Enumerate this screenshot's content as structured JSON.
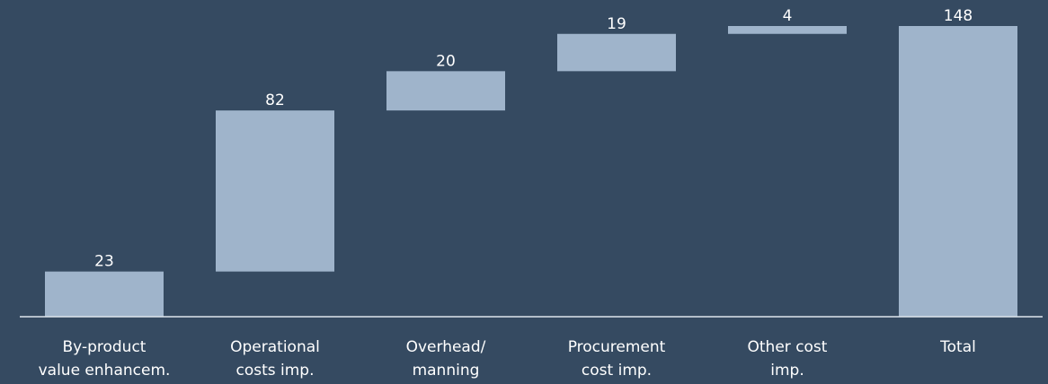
{
  "chart_data": {
    "type": "waterfall",
    "categories": [
      [
        "By-product",
        "value enhancem."
      ],
      [
        "Operational",
        "costs imp."
      ],
      [
        "Overhead/",
        "manning"
      ],
      [
        "Procurement",
        "cost imp."
      ],
      [
        "Other cost",
        "imp."
      ],
      [
        "Total"
      ]
    ],
    "values": [
      23,
      82,
      20,
      19,
      4,
      148
    ],
    "is_total": [
      false,
      false,
      false,
      false,
      false,
      true
    ],
    "color": "#9fb4cb"
  }
}
